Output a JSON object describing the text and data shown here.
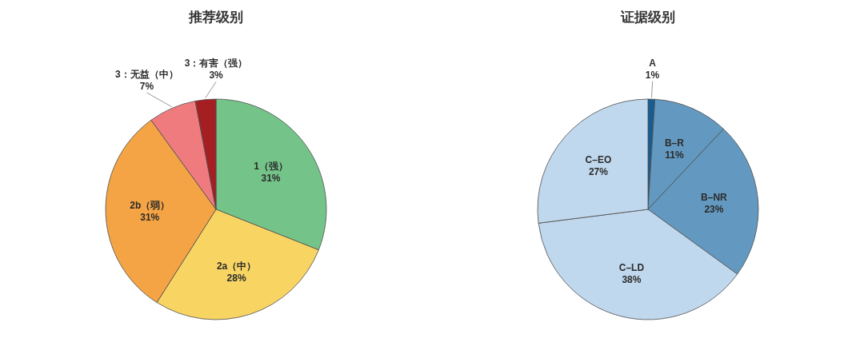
{
  "chart_data": [
    {
      "type": "pie",
      "title": "推荐级别",
      "categories": [
        "1（强）",
        "2a（中）",
        "2b（弱）",
        "3：无益（中）",
        "3：有害（强）"
      ],
      "values": [
        31,
        28,
        31,
        7,
        3
      ],
      "value_labels": [
        "31%",
        "28%",
        "31%",
        "7%",
        "3%"
      ],
      "colors": [
        "#74c48a",
        "#f8d563",
        "#f4a444",
        "#f07b7e",
        "#a51e22"
      ]
    },
    {
      "type": "pie",
      "title": "证据级别",
      "categories": [
        "A",
        "B–R",
        "B–NR",
        "C–LD",
        "C–EO"
      ],
      "values": [
        1,
        11,
        23,
        38,
        27
      ],
      "value_labels": [
        "1%",
        "11%",
        "23%",
        "38%",
        "27%"
      ],
      "colors": [
        "#155d93",
        "#6399c0",
        "#6399c0",
        "#c0d8ee",
        "#c0d8ee"
      ]
    }
  ]
}
